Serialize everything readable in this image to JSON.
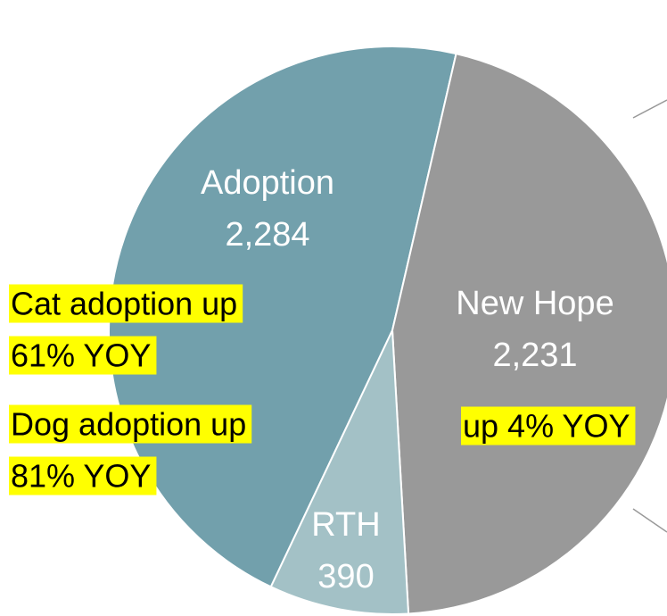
{
  "chart_data": {
    "type": "pie",
    "categories": [
      "Adoption",
      "New Hope",
      "RTH"
    ],
    "values": [
      2284,
      2231,
      390
    ],
    "value_labels": [
      "2,284",
      "2,231",
      "390"
    ],
    "colors": [
      "#72a0ac",
      "#999999",
      "#a3c1c6"
    ],
    "annotations": [
      {
        "lines": [
          "Cat adoption up",
          "61% YOY"
        ]
      },
      {
        "lines": [
          "Dog adoption up",
          "81% YOY"
        ]
      },
      {
        "lines": [
          "up 4% YOY"
        ]
      }
    ],
    "annotation_color": "#ffff00"
  }
}
